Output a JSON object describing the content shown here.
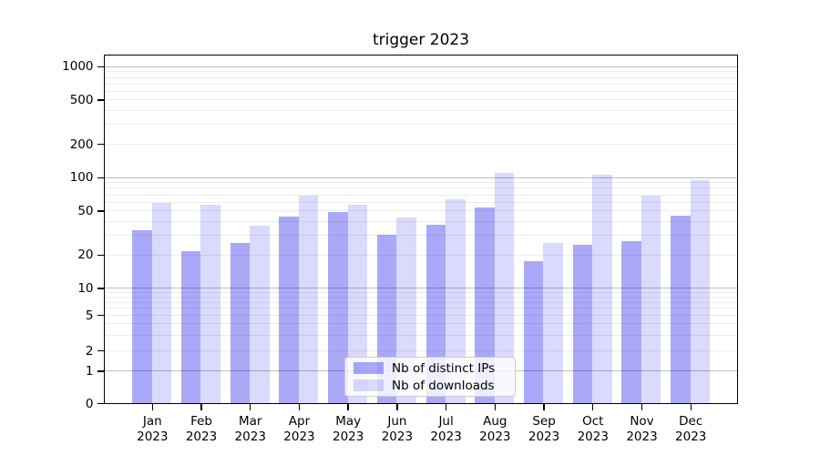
{
  "chart_data": {
    "type": "bar",
    "title": "trigger 2023",
    "categories": [
      "Jan 2023",
      "Feb 2023",
      "Mar 2023",
      "Apr 2023",
      "May 2023",
      "Jun 2023",
      "Jul 2023",
      "Aug 2023",
      "Sep 2023",
      "Oct 2023",
      "Nov 2023",
      "Dec 2023"
    ],
    "series": [
      {
        "name": "Nb of distinct IPs",
        "values": [
          34,
          22,
          26,
          45,
          50,
          31,
          38,
          55,
          18,
          25,
          27,
          46
        ]
      },
      {
        "name": "Nb of downloads",
        "values": [
          60,
          58,
          37,
          70,
          58,
          44,
          65,
          112,
          26,
          108,
          70,
          97
        ]
      }
    ],
    "xlabel": "",
    "ylabel": "",
    "yscale": "symlog",
    "ylim": [
      0,
      1300
    ],
    "ytick_values": [
      0,
      1,
      2,
      5,
      10,
      20,
      50,
      100,
      200,
      500,
      1000
    ],
    "ytick_labels": [
      "0",
      "1",
      "2",
      "5",
      "10",
      "20",
      "50",
      "100",
      "200",
      "500",
      "1000"
    ],
    "major_grid_values": [
      1,
      10,
      100,
      1000
    ],
    "minor_grid_values": [
      2,
      3,
      4,
      5,
      6,
      7,
      8,
      9,
      20,
      30,
      40,
      50,
      60,
      70,
      80,
      90,
      200,
      300,
      400,
      500,
      600,
      700,
      800,
      900
    ],
    "grid": "on",
    "legend_position": "lower-center"
  },
  "colors": {
    "bar_distinct_ips": "rgba(10,10,235,0.35)",
    "bar_downloads": "rgba(10,10,235,0.15)",
    "major_grid": "#bdbdbd",
    "minor_grid": "#ececec",
    "spine": "#000000"
  },
  "legend": {
    "items": [
      {
        "label": "Nb of distinct IPs"
      },
      {
        "label": "Nb of downloads"
      }
    ]
  }
}
